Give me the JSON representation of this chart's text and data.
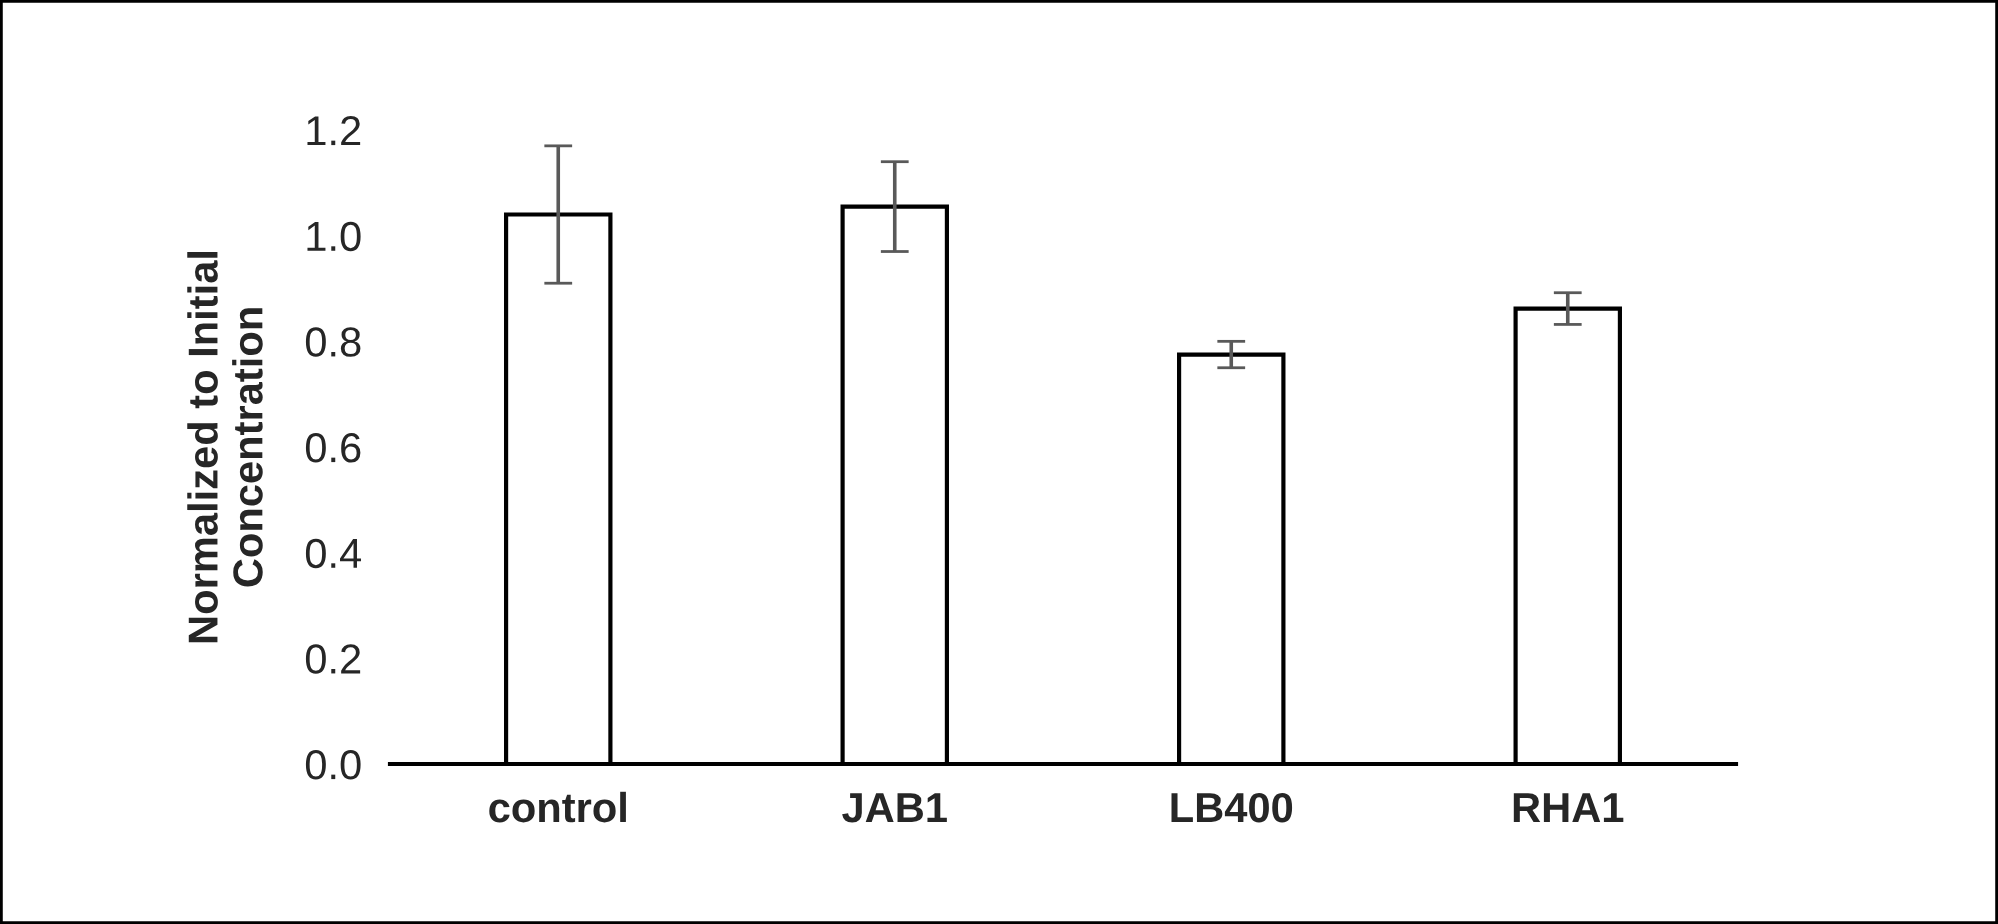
{
  "chart_data": {
    "type": "bar",
    "ylabel": "Normalized to Initial\nConcentration",
    "categories": [
      "control",
      "JAB1",
      "LB400",
      "RHA1"
    ],
    "values": [
      1.04,
      1.055,
      0.775,
      0.862
    ],
    "errors": [
      0.13,
      0.085,
      0.025,
      0.03
    ],
    "color": "#ffffff",
    "ylim": [
      0,
      1.2
    ],
    "yticks": [
      {
        "value": 0,
        "label": "0.0"
      },
      {
        "value": 0.2,
        "label": "0.2"
      },
      {
        "value": 0.4,
        "label": "0.4"
      },
      {
        "value": 0.6,
        "label": "0.6"
      },
      {
        "value": 0.8,
        "label": "0.8"
      },
      {
        "value": 1.0,
        "label": "1.0"
      },
      {
        "value": 1.2,
        "label": "1.2"
      }
    ],
    "grid": false
  }
}
